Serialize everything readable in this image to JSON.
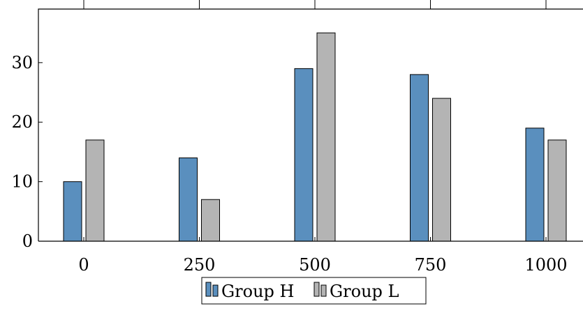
{
  "chart_data": {
    "type": "bar",
    "title": "",
    "xlabel": "",
    "ylabel": "",
    "categories": [
      "0",
      "250",
      "500",
      "750",
      "1000"
    ],
    "series": [
      {
        "name": "Group H",
        "color": "#5a8fbe",
        "values": [
          10,
          14,
          29,
          28,
          19
        ]
      },
      {
        "name": "Group L",
        "color": "#b4b4b4",
        "values": [
          17,
          7,
          35,
          24,
          17
        ]
      }
    ],
    "ylim": [
      0,
      39
    ],
    "yticks": [
      0,
      10,
      20,
      30
    ],
    "grid": false,
    "legend_position": "bottom-center"
  }
}
